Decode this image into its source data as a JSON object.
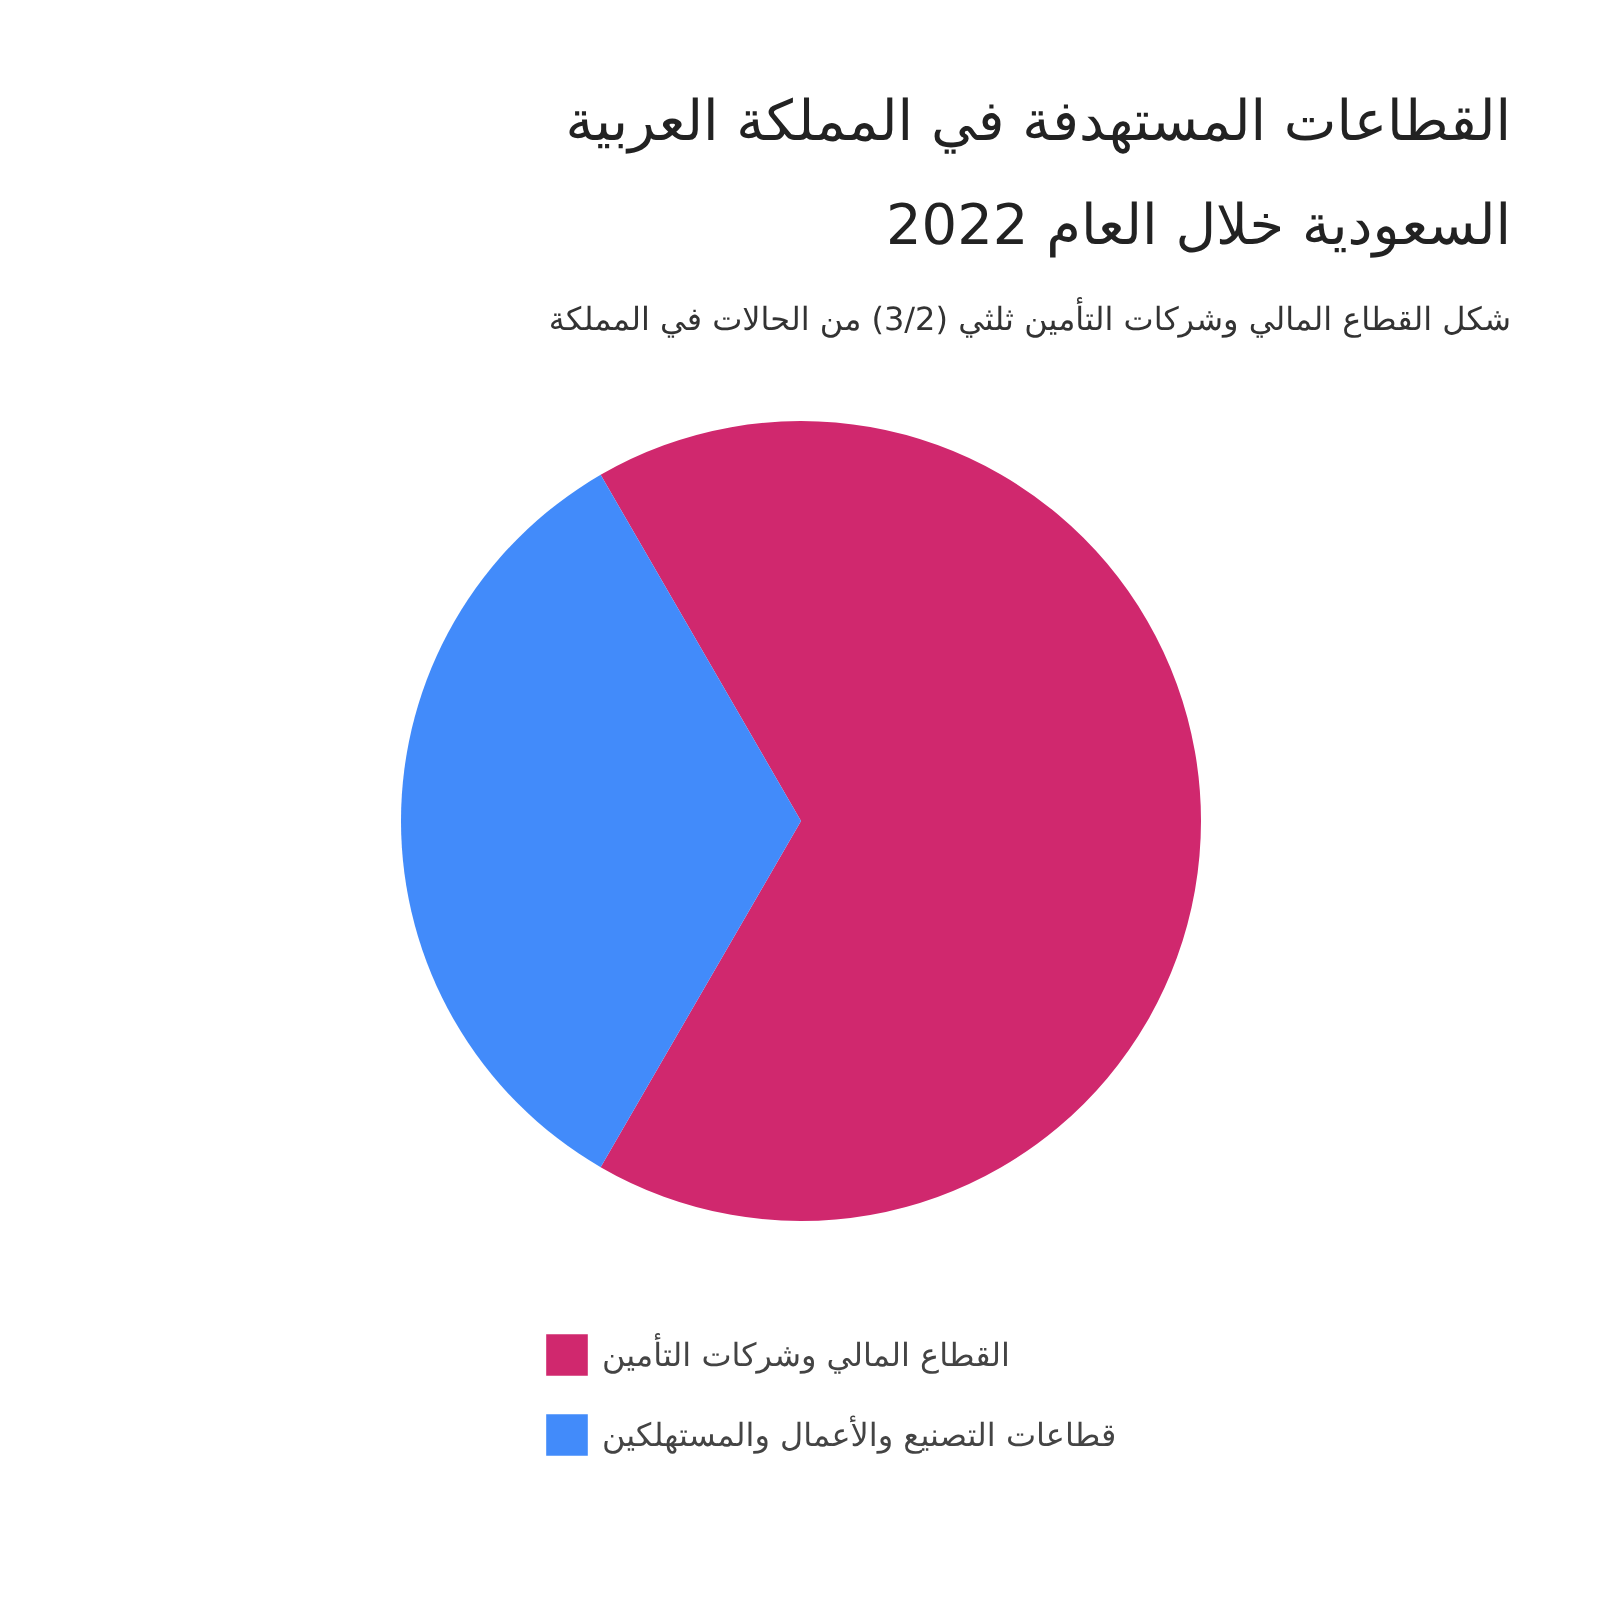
{
  "chart_data": {
    "type": "pie",
    "title": "القطاعات المستهدفة في المملكة العربية السعودية خلال العام 2022",
    "subtitle": "شكل القطاع المالي وشركات التأمين ثلثي (3/2) من الحالات في المملكة",
    "categories": [
      "القطاع المالي وشركات التأمين",
      "قطاعات التصنيع والأعمال والمستهلكين"
    ],
    "values": [
      66.7,
      33.3
    ],
    "colors": [
      "#d0286e",
      "#428bfa"
    ],
    "legend": "bottom"
  }
}
